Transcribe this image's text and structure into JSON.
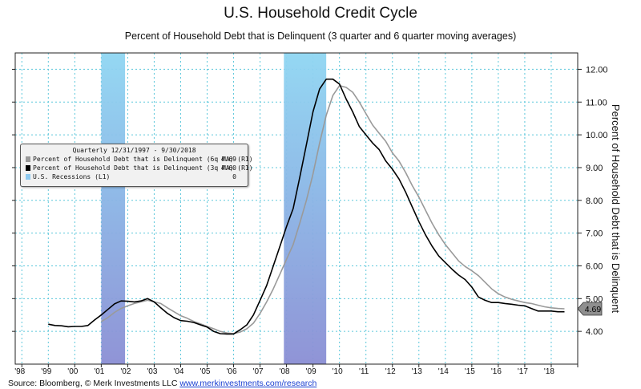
{
  "title": "U.S. Household Credit Cycle",
  "subtitle": "Percent of Household Debt that is Delinquent (3 quarter and 6 quarter moving averages)",
  "source": {
    "prefix": "Source: Bloomberg, © Merk Investments LLC ",
    "link": "www.merkinvestments.com/research"
  },
  "legend": {
    "header": "Quarterly 12/31/1997 - 9/30/2018",
    "items": [
      {
        "label": "Percent of Household Debt that is Delinquent (6q MA) (R1)",
        "value": "4.69",
        "color": "#9a9a9a"
      },
      {
        "label": "Percent of Household Debt that is Delinquent (3q MA) (R1)",
        "value": "4.60",
        "color": "#000000"
      },
      {
        "label": "U.S. Recessions (L1)",
        "value": "0",
        "color": "#8ec9ef"
      }
    ]
  },
  "chart_data": {
    "type": "line",
    "ylabel": "Percent of Household Debt that is Delinquent",
    "y_ticks": [
      "4.00",
      "5.00",
      "6.00",
      "7.00",
      "8.00",
      "9.00",
      "10.00",
      "11.00",
      "12.00"
    ],
    "ylim": [
      3.0,
      12.5
    ],
    "x_ticks": [
      "'98",
      "'99",
      "'00",
      "'01",
      "'02",
      "'03",
      "'04",
      "'05",
      "'06",
      "'07",
      "'08",
      "'09",
      "'10",
      "'11",
      "'12",
      "'13",
      "'14",
      "'15",
      "'16",
      "'17",
      "'18"
    ],
    "xlim": [
      1997.75,
      2019.0
    ],
    "grid": true,
    "last_value_tag": "4.69",
    "recessions": [
      {
        "start": 2001.0,
        "end": 2001.9
      },
      {
        "start": 2007.9,
        "end": 2009.5
      }
    ],
    "series": [
      {
        "name": "Percent of Household Debt that is Delinquent (3q MA) (R1)",
        "color": "#000000",
        "x": [
          1999.0,
          1999.25,
          1999.5,
          1999.75,
          2000.0,
          2000.25,
          2000.5,
          2000.75,
          2001.0,
          2001.25,
          2001.5,
          2001.75,
          2002.0,
          2002.25,
          2002.5,
          2002.75,
          2003.0,
          2003.25,
          2003.5,
          2003.75,
          2004.0,
          2004.25,
          2004.5,
          2004.75,
          2005.0,
          2005.25,
          2005.5,
          2005.75,
          2006.0,
          2006.25,
          2006.5,
          2006.75,
          2007.0,
          2007.25,
          2007.5,
          2007.75,
          2008.0,
          2008.25,
          2008.5,
          2008.75,
          2009.0,
          2009.25,
          2009.5,
          2009.75,
          2010.0,
          2010.25,
          2010.5,
          2010.75,
          2011.0,
          2011.25,
          2011.5,
          2011.75,
          2012.0,
          2012.25,
          2012.5,
          2012.75,
          2013.0,
          2013.25,
          2013.5,
          2013.75,
          2014.0,
          2014.25,
          2014.5,
          2014.75,
          2015.0,
          2015.25,
          2015.5,
          2015.75,
          2016.0,
          2016.25,
          2016.5,
          2016.75,
          2017.0,
          2017.25,
          2017.5,
          2017.75,
          2018.0,
          2018.25,
          2018.5
        ],
        "values": [
          4.22,
          4.18,
          4.17,
          4.14,
          4.15,
          4.15,
          4.18,
          4.35,
          4.5,
          4.67,
          4.84,
          4.93,
          4.92,
          4.9,
          4.93,
          5.0,
          4.9,
          4.72,
          4.55,
          4.42,
          4.33,
          4.31,
          4.27,
          4.2,
          4.13,
          4.0,
          3.93,
          3.92,
          3.92,
          4.05,
          4.2,
          4.5,
          4.95,
          5.4,
          6.0,
          6.6,
          7.2,
          7.75,
          8.7,
          9.7,
          10.7,
          11.4,
          11.7,
          11.7,
          11.55,
          11.1,
          10.7,
          10.25,
          10.0,
          9.75,
          9.55,
          9.2,
          8.95,
          8.65,
          8.25,
          7.8,
          7.35,
          6.95,
          6.6,
          6.3,
          6.1,
          5.9,
          5.72,
          5.58,
          5.35,
          5.05,
          4.95,
          4.88,
          4.88,
          4.85,
          4.83,
          4.8,
          4.78,
          4.7,
          4.62,
          4.62,
          4.62,
          4.6,
          4.6
        ]
      },
      {
        "name": "Percent of Household Debt that is Delinquent (6q MA) (R1)",
        "color": "#9a9a9a",
        "x": [
          2001.0,
          2001.25,
          2001.5,
          2001.75,
          2002.0,
          2002.25,
          2002.5,
          2002.75,
          2003.0,
          2003.25,
          2003.5,
          2003.75,
          2004.0,
          2004.25,
          2004.5,
          2004.75,
          2005.0,
          2005.25,
          2005.5,
          2005.75,
          2006.0,
          2006.25,
          2006.5,
          2006.75,
          2007.0,
          2007.25,
          2007.5,
          2007.75,
          2008.0,
          2008.25,
          2008.5,
          2008.75,
          2009.0,
          2009.25,
          2009.5,
          2009.75,
          2010.0,
          2010.25,
          2010.5,
          2010.75,
          2011.0,
          2011.25,
          2011.5,
          2011.75,
          2012.0,
          2012.25,
          2012.5,
          2012.75,
          2013.0,
          2013.25,
          2013.5,
          2013.75,
          2014.0,
          2014.25,
          2014.5,
          2014.75,
          2015.0,
          2015.25,
          2015.5,
          2015.75,
          2016.0,
          2016.25,
          2016.5,
          2016.75,
          2017.0,
          2017.25,
          2017.5,
          2017.75,
          2018.0,
          2018.25,
          2018.5
        ],
        "values": [
          4.3,
          4.42,
          4.58,
          4.7,
          4.78,
          4.85,
          4.9,
          4.95,
          4.9,
          4.85,
          4.72,
          4.6,
          4.48,
          4.4,
          4.3,
          4.23,
          4.15,
          4.08,
          4.0,
          3.95,
          3.93,
          3.98,
          4.08,
          4.25,
          4.55,
          4.9,
          5.3,
          5.75,
          6.2,
          6.65,
          7.3,
          8.0,
          8.8,
          9.75,
          10.6,
          11.2,
          11.5,
          11.45,
          11.3,
          11.0,
          10.65,
          10.3,
          10.05,
          9.8,
          9.45,
          9.2,
          8.85,
          8.45,
          8.1,
          7.7,
          7.3,
          6.95,
          6.65,
          6.4,
          6.15,
          5.98,
          5.85,
          5.7,
          5.5,
          5.3,
          5.15,
          5.05,
          4.98,
          4.93,
          4.88,
          4.85,
          4.8,
          4.75,
          4.72,
          4.7,
          4.69
        ]
      }
    ]
  }
}
